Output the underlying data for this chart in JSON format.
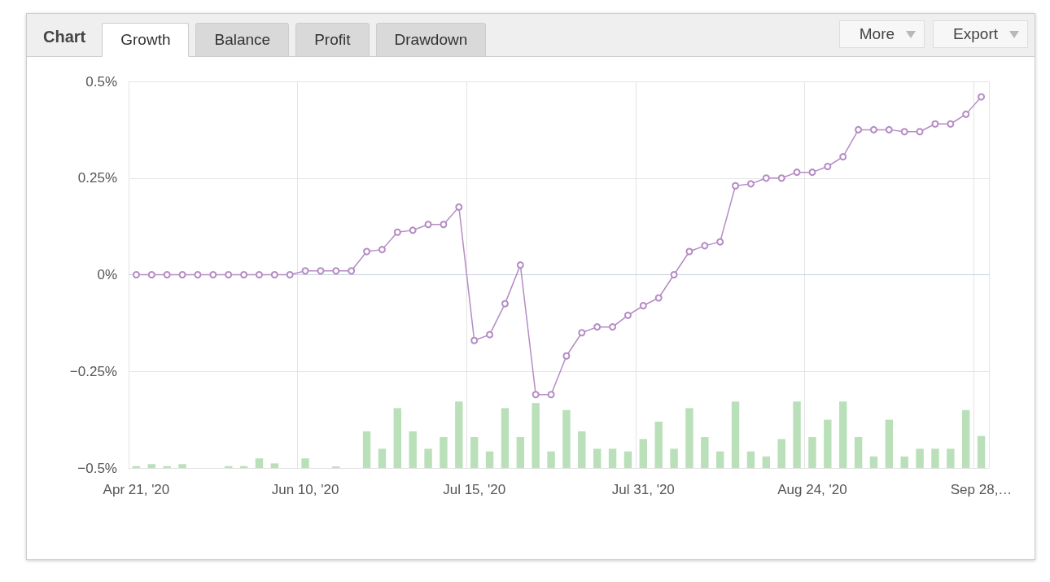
{
  "chart_data": {
    "type": "line",
    "annotations": [
      "Chart",
      "Growth",
      "Balance",
      "Profit",
      "Drawdown",
      "More",
      "Export"
    ],
    "categories": [
      "Apr 21, '20",
      null,
      null,
      null,
      null,
      null,
      null,
      null,
      null,
      null,
      null,
      "Jun 10, '20",
      null,
      null,
      null,
      null,
      null,
      null,
      null,
      null,
      null,
      null,
      "Jul 15, '20",
      null,
      null,
      null,
      null,
      null,
      null,
      null,
      null,
      null,
      null,
      "Jul 31, '20",
      null,
      null,
      null,
      null,
      null,
      null,
      null,
      null,
      null,
      null,
      "Aug 24, '20",
      null,
      null,
      null,
      null,
      null,
      null,
      null,
      null,
      null,
      null,
      "Sep 28,…"
    ],
    "series": [
      {
        "color": "#b48cc4",
        "marker": "circle",
        "values": [
          0,
          0,
          0,
          0,
          0,
          0,
          0,
          0,
          0,
          0,
          0,
          0.01,
          0.01,
          0.01,
          0.01,
          0.06,
          0.065,
          0.11,
          0.115,
          0.13,
          0.13,
          0.175,
          -0.17,
          -0.155,
          -0.075,
          0.025,
          -0.31,
          -0.31,
          -0.21,
          -0.15,
          -0.135,
          -0.135,
          -0.105,
          -0.08,
          -0.06,
          0,
          0.06,
          0.075,
          0.085,
          0.23,
          0.235,
          0.25,
          0.25,
          0.265,
          0.265,
          0.28,
          0.305,
          0.375,
          0.375,
          0.375,
          0.37,
          0.37,
          0.39,
          0.39,
          0.415,
          0.46
        ]
      },
      {
        "type": "bar",
        "color": "#b9e0b9",
        "base": [
          -0.5,
          -0.5,
          -0.5,
          -0.5,
          null,
          null,
          -0.5,
          -0.5,
          -0.5,
          -0.5,
          null,
          -0.5,
          null,
          -0.5,
          null,
          -0.5,
          -0.5,
          -0.5,
          -0.5,
          -0.5,
          -0.5,
          -0.5,
          -0.5,
          -0.5,
          -0.5,
          -0.5,
          -0.5,
          -0.5,
          -0.5,
          -0.5,
          -0.5,
          -0.5,
          -0.5,
          -0.5,
          -0.5,
          -0.5,
          -0.5,
          -0.5,
          -0.5,
          -0.5,
          -0.5,
          -0.5,
          -0.5,
          -0.5,
          -0.5,
          -0.5,
          -0.5,
          -0.5,
          -0.5,
          -0.5,
          -0.5,
          -0.5,
          -0.5,
          -0.5,
          -0.5,
          -0.5
        ],
        "values": [
          0.005,
          0.01,
          0.005,
          0.01,
          null,
          null,
          0.005,
          0.005,
          0.025,
          0.012,
          null,
          0.025,
          null,
          0.004,
          null,
          0.095,
          0.05,
          0.155,
          0.095,
          0.05,
          0.08,
          0.172,
          0.08,
          0.043,
          0.155,
          0.08,
          0.168,
          0.043,
          0.15,
          0.095,
          0.05,
          0.05,
          0.043,
          0.075,
          0.12,
          0.05,
          0.155,
          0.08,
          0.043,
          0.172,
          0.043,
          0.03,
          0.075,
          0.172,
          0.08,
          0.125,
          0.172,
          0.08,
          0.03,
          0.125,
          0.03,
          0.05,
          0.05,
          0.05,
          0.15,
          0.083
        ]
      }
    ],
    "ylim": [
      -0.5,
      0.5
    ],
    "yticks": [
      {
        "value": -0.5,
        "label": "−0.5%"
      },
      {
        "value": -0.25,
        "label": "−0.25%"
      },
      {
        "value": 0,
        "label": "0%"
      },
      {
        "value": 0.25,
        "label": "0.25%"
      },
      {
        "value": 0.5,
        "label": "0.5%"
      }
    ],
    "grid": true
  }
}
